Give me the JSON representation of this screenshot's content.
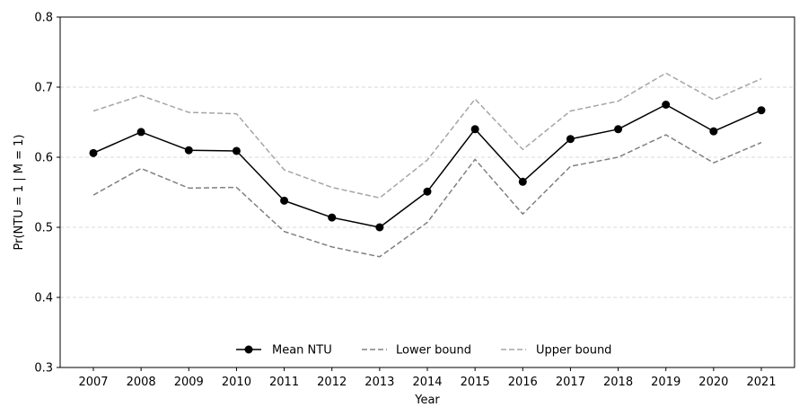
{
  "chart_data": {
    "type": "line",
    "title": "",
    "xlabel": "Year",
    "ylabel": "Pr(NTU = 1 | M = 1)",
    "x": [
      "2007",
      "2008",
      "2009",
      "2010",
      "2011",
      "2012",
      "2013",
      "2014",
      "2015",
      "2016",
      "2017",
      "2018",
      "2019",
      "2020",
      "2021"
    ],
    "ylim": [
      0.3,
      0.8
    ],
    "yticks": [
      "0.3",
      "0.4",
      "0.5",
      "0.6",
      "0.7",
      "0.8"
    ],
    "grid": "horizontal dashed",
    "legend_position": "bottom-center",
    "series": [
      {
        "name": "Mean NTU",
        "color": "#000000",
        "style": "solid with circle markers",
        "values": [
          0.606,
          0.636,
          0.61,
          0.609,
          0.538,
          0.514,
          0.5,
          0.551,
          0.64,
          0.565,
          0.626,
          0.64,
          0.675,
          0.637,
          0.667
        ]
      },
      {
        "name": "Lower bound",
        "color": "#808080",
        "style": "dashed",
        "values": [
          0.546,
          0.584,
          0.556,
          0.557,
          0.494,
          0.472,
          0.458,
          0.507,
          0.597,
          0.519,
          0.587,
          0.6,
          0.632,
          0.592,
          0.621
        ]
      },
      {
        "name": "Upper bound",
        "color": "#a6a6a6",
        "style": "dashed",
        "values": [
          0.666,
          0.688,
          0.664,
          0.662,
          0.582,
          0.557,
          0.542,
          0.596,
          0.683,
          0.611,
          0.666,
          0.68,
          0.72,
          0.682,
          0.712
        ]
      }
    ]
  }
}
